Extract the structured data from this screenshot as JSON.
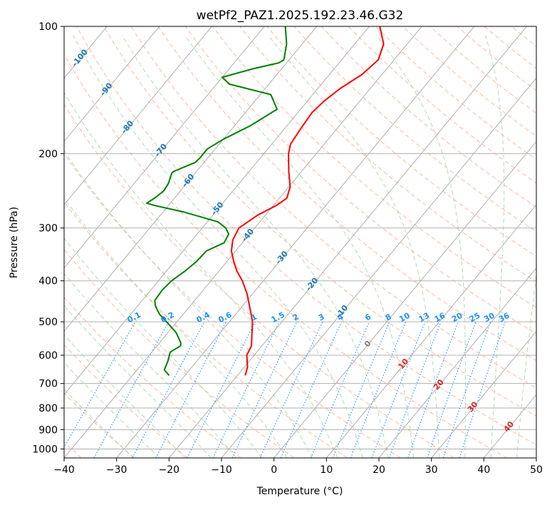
{
  "chart_data": {
    "type": "line",
    "title": "wetPf2_PAZ1.2025.192.23.46.G32",
    "xlabel": "Temperature (°C)",
    "ylabel": "Pressure (hPa)",
    "xlim": [
      -40,
      50
    ],
    "ylim": [
      1050,
      100
    ],
    "y_scale": "log",
    "x_ticks": [
      -40,
      -30,
      -20,
      -10,
      0,
      10,
      20,
      30,
      40,
      50
    ],
    "x_tick_labels": [
      "−40",
      "−30",
      "−20",
      "−10",
      "0",
      "10",
      "20",
      "30",
      "40",
      "50"
    ],
    "y_ticks": [
      100,
      200,
      300,
      400,
      500,
      600,
      700,
      800,
      900,
      1000
    ],
    "y_tick_labels": [
      "100",
      "200",
      "300",
      "400",
      "500",
      "600",
      "700",
      "800",
      "900",
      "1000"
    ],
    "grid": true,
    "series": [
      {
        "role": "temperature",
        "color": "#ff0000",
        "pressure": [
          100,
          110,
          120,
          130,
          140,
          150,
          160,
          175,
          190,
          200,
          220,
          240,
          255,
          265,
          280,
          300,
          320,
          340,
          360,
          380,
          400,
          430,
          470,
          500,
          540,
          570,
          600,
          640,
          670
        ],
        "temperature": [
          -48.0,
          -44.5,
          -43.0,
          -43.8,
          -45.7,
          -46.8,
          -47.3,
          -46.9,
          -46.4,
          -45.3,
          -42.5,
          -39.7,
          -38.6,
          -39.4,
          -41.5,
          -43.0,
          -42.3,
          -40.8,
          -38.7,
          -36.5,
          -34.0,
          -31.0,
          -27.8,
          -25.6,
          -23.5,
          -22.0,
          -21.4,
          -19.4,
          -18.5
        ]
      },
      {
        "role": "dewpoint",
        "color": "#008000",
        "pressure": [
          100,
          110,
          120,
          122,
          126,
          132,
          137,
          145,
          157,
          172,
          185,
          195,
          200,
          205,
          210,
          220,
          222,
          235,
          245,
          255,
          262,
          265,
          275,
          290,
          300,
          310,
          325,
          340,
          360,
          380,
          400,
          420,
          445,
          460,
          480,
          500,
          530,
          560,
          570,
          590,
          620,
          650,
          670
        ],
        "temperature": [
          -66.0,
          -63.0,
          -61.0,
          -61.5,
          -65.5,
          -70.0,
          -67.5,
          -58.0,
          -54.5,
          -57.0,
          -60.0,
          -61.5,
          -61.5,
          -61.5,
          -61.7,
          -64.3,
          -64.5,
          -63.5,
          -63.2,
          -63.8,
          -64.5,
          -62.8,
          -56.0,
          -48.0,
          -45.5,
          -44.0,
          -43.5,
          -45.6,
          -45.8,
          -46.5,
          -47.5,
          -47.8,
          -47.6,
          -46.5,
          -44.5,
          -42.0,
          -38.5,
          -36.0,
          -35.5,
          -36.5,
          -35.5,
          -34.8,
          -33.0
        ]
      }
    ],
    "dry_adiabats_c": [
      -60,
      -50,
      -40,
      -30,
      -20,
      -10,
      0,
      10,
      20,
      30,
      40,
      50,
      60,
      70,
      80,
      90,
      100,
      110,
      120,
      130,
      140,
      150,
      160,
      170,
      180,
      190,
      200,
      210,
      220,
      230,
      240,
      250,
      260,
      270,
      280,
      290,
      300,
      310,
      320,
      330,
      340,
      350,
      360
    ],
    "moist_adiabats_c": [
      -30,
      -25,
      -20,
      -15,
      -10,
      -5,
      0,
      5,
      10,
      15,
      20,
      25,
      30,
      35,
      40,
      45,
      50
    ],
    "mixing_ratio_lines": [
      "0.1",
      "0.2",
      "0.4",
      "0.6",
      "1",
      "1.5",
      "2",
      "3",
      "4",
      "6",
      "8",
      "10",
      "13",
      "16",
      "20",
      "25",
      "30",
      "36"
    ],
    "isotherm_labels": [
      {
        "text": "-100",
        "color": "#1f77b4"
      },
      {
        "text": "-90",
        "color": "#1f77b4"
      },
      {
        "text": "-80",
        "color": "#1f77b4"
      },
      {
        "text": "-70",
        "color": "#1f77b4"
      },
      {
        "text": "-60",
        "color": "#1f77b4"
      },
      {
        "text": "-50",
        "color": "#1f77b4"
      },
      {
        "text": "-40",
        "color": "#1f77b4"
      },
      {
        "text": "-30",
        "color": "#1f77b4"
      },
      {
        "text": "-20",
        "color": "#1f77b4"
      },
      {
        "text": "-10",
        "color": "#1f77b4"
      },
      {
        "text": "0",
        "color": "#7f7f7f"
      },
      {
        "text": "10",
        "color": "#d62728"
      },
      {
        "text": "20",
        "color": "#d62728"
      },
      {
        "text": "30",
        "color": "#d62728"
      },
      {
        "text": "40",
        "color": "#d62728"
      }
    ],
    "colors": {
      "temperature": "#ff0000",
      "dewpoint": "#008000",
      "isotherm": "#b0b0b0",
      "dry_adiabat": "#ffa07a",
      "moist_adiabat": "#9fd39f",
      "mixing_ratio": "#1e90ff",
      "mixing_label": "#1e90ff"
    }
  }
}
